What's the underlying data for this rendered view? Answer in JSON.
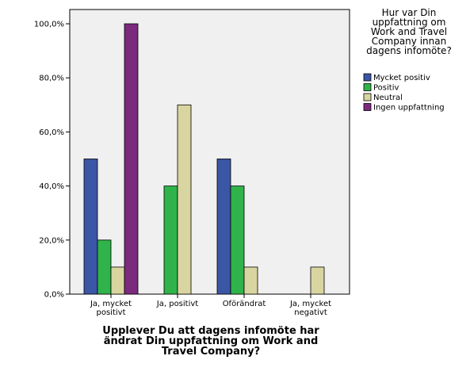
{
  "chart_data": {
    "type": "bar",
    "categories": [
      [
        "Ja, mycket",
        "positivt"
      ],
      [
        "Ja, positivt"
      ],
      [
        "Oförändrat"
      ],
      [
        "Ja, mycket",
        "negativt"
      ]
    ],
    "series": [
      {
        "name": "Mycket positiv",
        "color": "#3b56a5",
        "values": [
          50,
          0,
          50,
          0
        ]
      },
      {
        "name": "Positiv",
        "color": "#2fb34a",
        "values": [
          20,
          40,
          40,
          0
        ]
      },
      {
        "name": "Neutral",
        "color": "#d8d5a0",
        "values": [
          10,
          70,
          10,
          10
        ]
      },
      {
        "name": "Ingen uppfattning",
        "color": "#7b2a7e",
        "values": [
          100,
          0,
          0,
          0
        ]
      }
    ],
    "ylim": [
      0,
      100
    ],
    "yticks": [
      "0,0%",
      "20,0%",
      "40,0%",
      "60,0%",
      "80,0%",
      "100,0%"
    ],
    "xlabel": [
      "Upplever Du att dagens infomöte har",
      "ändrat Din uppfattning om Work and",
      "Travel Company?"
    ],
    "ylabel": "",
    "legend_title": [
      "Hur var Din",
      "uppfattning om",
      "Work and Travel",
      "Company innan",
      "dagens infomöte?"
    ],
    "legend_position": "right",
    "grid": false,
    "plot_background": "#f0f0f0"
  }
}
